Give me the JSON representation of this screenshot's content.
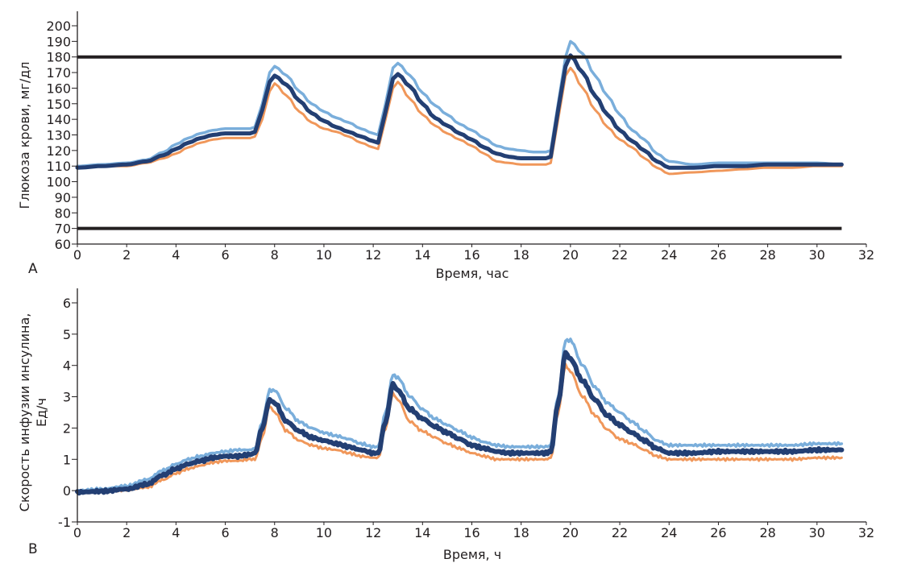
{
  "chart_data": [
    {
      "panel_label": "A",
      "type": "line",
      "title": "",
      "xlabel": "Время, час",
      "ylabel": "Глюкоза крови, мг/дл",
      "xlim": [
        0,
        32
      ],
      "ylim": [
        60,
        200
      ],
      "xticks": [
        "0",
        "2",
        "4",
        "6",
        "8",
        "10",
        "12",
        "14",
        "16",
        "18",
        "20",
        "22",
        "24",
        "26",
        "28",
        "30",
        "32"
      ],
      "yticks": [
        "60",
        "70",
        "80",
        "90",
        "100",
        "110",
        "120",
        "130",
        "140",
        "150",
        "160",
        "170",
        "180",
        "190",
        "200"
      ],
      "grid": false,
      "legend": "none",
      "reference_lines": [
        {
          "name": "upper-threshold",
          "y": 180,
          "color": "#231f20"
        },
        {
          "name": "lower-threshold",
          "y": 70,
          "color": "#231f20"
        }
      ],
      "x": [
        0,
        1,
        2,
        2.8,
        3.5,
        4,
        4.5,
        5,
        5.5,
        6,
        6.5,
        7,
        7.2,
        7.5,
        7.8,
        8,
        8.5,
        9,
        9.5,
        10,
        10.5,
        11,
        11.5,
        12,
        12.2,
        12.5,
        12.8,
        13,
        13.5,
        14,
        14.5,
        15,
        15.5,
        16,
        16.5,
        17,
        17.5,
        18,
        18.5,
        19,
        19.2,
        19.5,
        19.8,
        20,
        20.5,
        21,
        21.5,
        22,
        22.5,
        23,
        23.5,
        24,
        25,
        26,
        27,
        28,
        29,
        30,
        31
      ],
      "series": [
        {
          "name": "upper",
          "color": "#7aaedb",
          "values": [
            110,
            111,
            112,
            114,
            119,
            124,
            128,
            131,
            133,
            134,
            134,
            134,
            135,
            150,
            170,
            174,
            168,
            158,
            150,
            145,
            141,
            138,
            134,
            131,
            130,
            150,
            173,
            176,
            168,
            157,
            149,
            143,
            137,
            133,
            128,
            123,
            121,
            120,
            119,
            119,
            120,
            150,
            180,
            190,
            182,
            168,
            155,
            143,
            133,
            127,
            118,
            113,
            111,
            112,
            112,
            112,
            112,
            112,
            111
          ]
        },
        {
          "name": "mean",
          "color": "#233f73",
          "values": [
            109,
            110,
            111,
            113,
            117,
            121,
            125,
            128,
            130,
            131,
            131,
            131,
            132,
            146,
            164,
            168,
            162,
            152,
            144,
            139,
            135,
            132,
            129,
            126,
            125,
            145,
            166,
            169,
            161,
            150,
            141,
            136,
            131,
            127,
            122,
            118,
            116,
            115,
            115,
            115,
            116,
            146,
            174,
            181,
            170,
            155,
            143,
            133,
            126,
            120,
            113,
            109,
            109,
            110,
            110,
            111,
            111,
            111,
            111
          ]
        },
        {
          "name": "lower",
          "color": "#f0975a",
          "values": [
            109,
            110,
            110,
            112,
            115,
            118,
            122,
            125,
            127,
            128,
            128,
            128,
            129,
            140,
            158,
            163,
            155,
            145,
            138,
            134,
            132,
            129,
            125,
            122,
            121,
            140,
            160,
            164,
            153,
            143,
            136,
            131,
            127,
            123,
            118,
            113,
            112,
            111,
            111,
            111,
            112,
            140,
            168,
            173,
            160,
            146,
            135,
            127,
            122,
            115,
            109,
            105,
            106,
            107,
            108,
            109,
            109,
            110,
            110
          ]
        }
      ]
    },
    {
      "panel_label": "B",
      "type": "line",
      "title": "",
      "xlabel": "Время, ч",
      "ylabel": "Скорость инфузии инсулина, Ед/ч",
      "ylabel_lines": [
        "Скорость инфузии инсулина,",
        "Ед/ч"
      ],
      "xlim": [
        0,
        32
      ],
      "ylim": [
        -1,
        6
      ],
      "xticks": [
        "0",
        "2",
        "4",
        "6",
        "8",
        "10",
        "12",
        "14",
        "16",
        "18",
        "20",
        "22",
        "24",
        "26",
        "28",
        "30",
        "32"
      ],
      "yticks": [
        "-1",
        "0",
        "1",
        "2",
        "3",
        "4",
        "5",
        "6"
      ],
      "grid": false,
      "legend": "none",
      "x": [
        0,
        1,
        2,
        2.8,
        3.5,
        4,
        4.5,
        5,
        5.5,
        6,
        6.5,
        7,
        7.2,
        7.5,
        7.8,
        8,
        8.5,
        9,
        9.5,
        10,
        10.5,
        11,
        11.5,
        12,
        12.2,
        12.5,
        12.8,
        13,
        13.5,
        14,
        14.5,
        15,
        15.5,
        16,
        16.5,
        17,
        17.5,
        18,
        18.5,
        19,
        19.2,
        19.5,
        19.8,
        20,
        20.5,
        21,
        21.5,
        22,
        22.5,
        23,
        23.5,
        24,
        25,
        26,
        27,
        28,
        29,
        30,
        31
      ],
      "series": [
        {
          "name": "upper",
          "color": "#7aaedb",
          "values": [
            0.0,
            0.05,
            0.15,
            0.35,
            0.65,
            0.85,
            1.0,
            1.1,
            1.2,
            1.25,
            1.3,
            1.3,
            1.35,
            2.2,
            3.2,
            3.2,
            2.6,
            2.2,
            2.0,
            1.85,
            1.75,
            1.65,
            1.5,
            1.4,
            1.4,
            2.5,
            3.7,
            3.6,
            3.0,
            2.6,
            2.3,
            2.1,
            1.9,
            1.7,
            1.55,
            1.45,
            1.4,
            1.4,
            1.4,
            1.4,
            1.45,
            3.0,
            4.8,
            4.8,
            4.0,
            3.3,
            2.8,
            2.5,
            2.2,
            1.9,
            1.6,
            1.45,
            1.45,
            1.45,
            1.45,
            1.45,
            1.45,
            1.5,
            1.5
          ]
        },
        {
          "name": "mean",
          "color": "#233f73",
          "values": [
            -0.05,
            -0.02,
            0.05,
            0.2,
            0.5,
            0.7,
            0.85,
            0.95,
            1.05,
            1.1,
            1.1,
            1.15,
            1.2,
            2.0,
            2.9,
            2.8,
            2.2,
            1.9,
            1.7,
            1.6,
            1.5,
            1.4,
            1.3,
            1.2,
            1.2,
            2.2,
            3.4,
            3.2,
            2.6,
            2.3,
            2.05,
            1.85,
            1.65,
            1.45,
            1.35,
            1.25,
            1.2,
            1.2,
            1.2,
            1.2,
            1.25,
            2.8,
            4.4,
            4.2,
            3.5,
            2.9,
            2.4,
            2.1,
            1.85,
            1.6,
            1.35,
            1.2,
            1.2,
            1.25,
            1.25,
            1.25,
            1.25,
            1.3,
            1.3
          ]
        },
        {
          "name": "lower",
          "color": "#f0975a",
          "values": [
            -0.05,
            -0.03,
            0.02,
            0.1,
            0.35,
            0.55,
            0.7,
            0.8,
            0.9,
            0.95,
            0.95,
            1.0,
            1.0,
            1.7,
            2.7,
            2.5,
            1.9,
            1.6,
            1.45,
            1.35,
            1.3,
            1.2,
            1.1,
            1.05,
            1.05,
            2.0,
            3.1,
            2.9,
            2.2,
            1.9,
            1.7,
            1.5,
            1.35,
            1.2,
            1.1,
            1.0,
            1.0,
            1.0,
            1.0,
            1.0,
            1.05,
            2.5,
            4.0,
            3.8,
            3.0,
            2.4,
            1.95,
            1.65,
            1.5,
            1.3,
            1.1,
            1.0,
            1.0,
            1.0,
            1.0,
            1.0,
            1.0,
            1.05,
            1.05
          ]
        }
      ]
    }
  ]
}
